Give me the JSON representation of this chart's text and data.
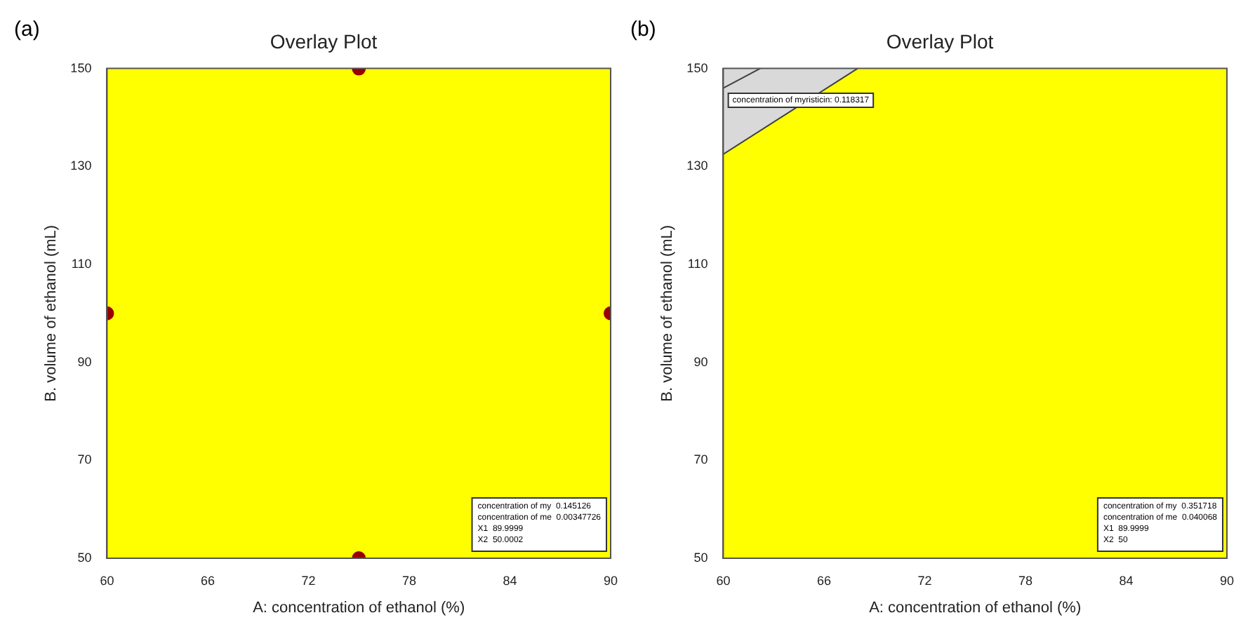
{
  "chart_data": [
    {
      "type": "scatter",
      "title": "Overlay Plot",
      "xlabel": "A: concentration of ethanol (%)",
      "ylabel": "B. volume of ethanol (mL)",
      "xlim": [
        60,
        90
      ],
      "xticks": [
        60,
        66,
        72,
        78,
        84,
        90
      ],
      "ylim": [
        50,
        150
      ],
      "yticks": [
        50,
        70,
        90,
        110,
        130,
        150
      ],
      "grid": false,
      "legend": false,
      "marker": "circle",
      "bands": [
        {
          "axis": "x",
          "from": 60,
          "to": 90,
          "color": "#ffff00"
        }
      ],
      "series": [
        {
          "color": "#990000",
          "x": [
            75,
            60,
            90,
            75
          ],
          "values": [
            150,
            100,
            100,
            50
          ]
        }
      ],
      "annotations": [
        "(a)",
        "concentration of my  0.145126",
        "concentration of me  0.00347726",
        "X1  89.9999",
        "X2  50.0002"
      ]
    },
    {
      "type": "line",
      "title": "Overlay Plot",
      "xlabel": "A: concentration of ethanol (%)",
      "ylabel": "B. volume of ethanol (mL)",
      "xlim": [
        60,
        90
      ],
      "xticks": [
        60,
        66,
        72,
        78,
        84,
        90
      ],
      "ylim": [
        50,
        150
      ],
      "yticks": [
        50,
        70,
        90,
        110,
        130,
        150
      ],
      "grid": false,
      "legend": false,
      "marker": "none",
      "bands": [
        {
          "axis": "x",
          "from": 60,
          "to": 90,
          "color": "#ffff00"
        }
      ],
      "series": [
        {
          "color": "#404040",
          "x": [
            60,
            68
          ],
          "values": [
            132.5,
            150
          ],
          "lower": [
            132.5,
            150
          ],
          "upper": [
            150,
            150
          ]
        },
        {
          "color": "#404040",
          "x": [
            60,
            62.2
          ],
          "values": [
            146,
            150
          ]
        }
      ],
      "annotations": [
        "(b)",
        {
          "text": "concentration of myristicin: 0.118317",
          "x": 60.3,
          "y": 143.5
        },
        "concentration of my  0.351718",
        "concentration of me  0.040068",
        "X1  89.9999",
        "X2  50"
      ]
    }
  ]
}
